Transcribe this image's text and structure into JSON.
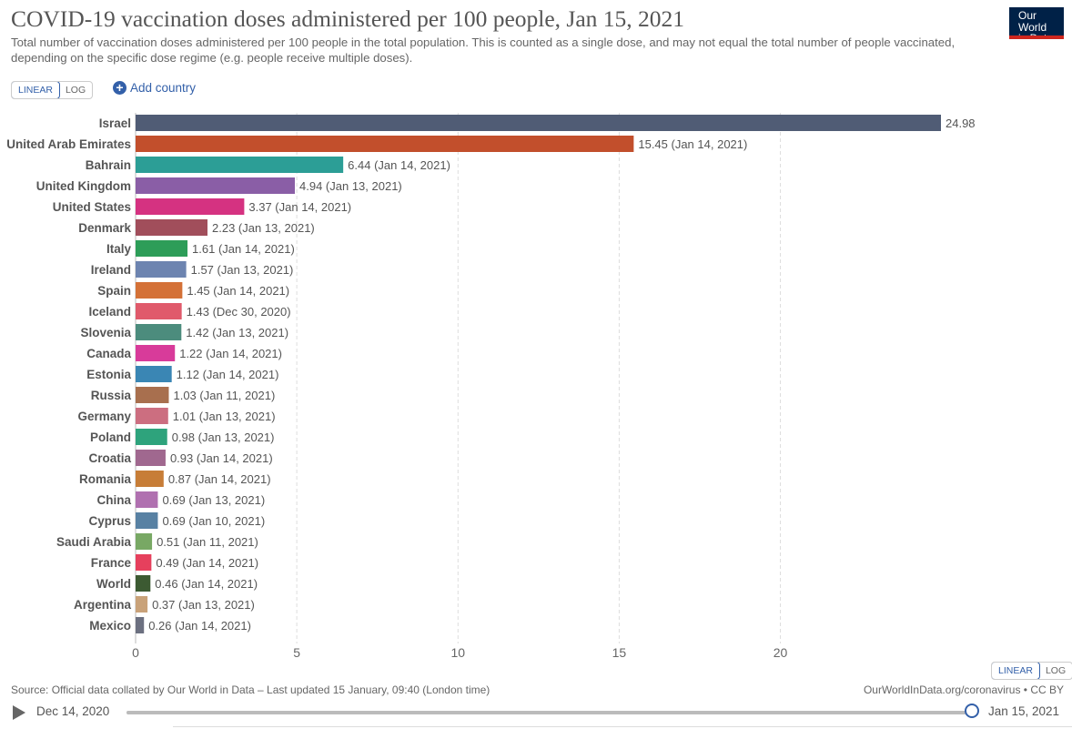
{
  "header": {
    "title": "COVID-19 vaccination doses administered per 100 people, Jan 15, 2021",
    "subtitle": "Total number of vaccination doses administered per 100 people in the total population. This is counted as a single dose, and may not equal the total number of people vaccinated, depending on the specific dose regime (e.g. people receive multiple doses).",
    "logo_line1": "Our World",
    "logo_line2": "in Data"
  },
  "controls": {
    "linear_label": "LINEAR",
    "log_label": "LOG",
    "add_country_label": "Add country"
  },
  "footer": {
    "source": "Source: Official data collated by Our World in Data – Last updated 15 January, 09:40 (London time)",
    "license": "OurWorldInData.org/coronavirus • CC BY"
  },
  "timeline": {
    "start_label": "Dec 14, 2020",
    "end_label": "Jan 15, 2021",
    "progress": 1.0
  },
  "chart_data": {
    "type": "bar",
    "orientation": "horizontal",
    "xlim": [
      0,
      25
    ],
    "xticks": [
      0,
      5,
      10,
      15,
      20
    ],
    "grid": "vertical dashed",
    "bars": [
      {
        "label": "Israel",
        "value": 24.98,
        "value_label": "24.98",
        "color": "#505c75"
      },
      {
        "label": "United Arab Emirates",
        "value": 15.45,
        "value_label": "15.45 (Jan 14, 2021)",
        "color": "#c24f2c"
      },
      {
        "label": "Bahrain",
        "value": 6.44,
        "value_label": "6.44 (Jan 14, 2021)",
        "color": "#2c9e96"
      },
      {
        "label": "United Kingdom",
        "value": 4.94,
        "value_label": "4.94 (Jan 13, 2021)",
        "color": "#8a5ea6"
      },
      {
        "label": "United States",
        "value": 3.37,
        "value_label": "3.37 (Jan 14, 2021)",
        "color": "#d53281"
      },
      {
        "label": "Denmark",
        "value": 2.23,
        "value_label": "2.23 (Jan 13, 2021)",
        "color": "#a14e5b"
      },
      {
        "label": "Italy",
        "value": 1.61,
        "value_label": "1.61 (Jan 14, 2021)",
        "color": "#2d9d58"
      },
      {
        "label": "Ireland",
        "value": 1.57,
        "value_label": "1.57 (Jan 13, 2021)",
        "color": "#6d84b0"
      },
      {
        "label": "Spain",
        "value": 1.45,
        "value_label": "1.45 (Jan 14, 2021)",
        "color": "#d47137"
      },
      {
        "label": "Iceland",
        "value": 1.43,
        "value_label": "1.43 (Dec 30, 2020)",
        "color": "#e05a6b"
      },
      {
        "label": "Slovenia",
        "value": 1.42,
        "value_label": "1.42 (Jan 13, 2021)",
        "color": "#4c8c7d"
      },
      {
        "label": "Canada",
        "value": 1.22,
        "value_label": "1.22 (Jan 14, 2021)",
        "color": "#d83b9a"
      },
      {
        "label": "Estonia",
        "value": 1.12,
        "value_label": "1.12 (Jan 14, 2021)",
        "color": "#3a86b4"
      },
      {
        "label": "Russia",
        "value": 1.03,
        "value_label": "1.03 (Jan 11, 2021)",
        "color": "#a86f4e"
      },
      {
        "label": "Germany",
        "value": 1.01,
        "value_label": "1.01 (Jan 13, 2021)",
        "color": "#cc6e80"
      },
      {
        "label": "Poland",
        "value": 0.98,
        "value_label": "0.98 (Jan 13, 2021)",
        "color": "#2ea37c"
      },
      {
        "label": "Croatia",
        "value": 0.93,
        "value_label": "0.93 (Jan 14, 2021)",
        "color": "#a0688f"
      },
      {
        "label": "Romania",
        "value": 0.87,
        "value_label": "0.87 (Jan 14, 2021)",
        "color": "#c77d37"
      },
      {
        "label": "China",
        "value": 0.69,
        "value_label": "0.69 (Jan 13, 2021)",
        "color": "#b070b0"
      },
      {
        "label": "Cyprus",
        "value": 0.69,
        "value_label": "0.69 (Jan 10, 2021)",
        "color": "#5881a3"
      },
      {
        "label": "Saudi Arabia",
        "value": 0.51,
        "value_label": "0.51 (Jan 11, 2021)",
        "color": "#78a864"
      },
      {
        "label": "France",
        "value": 0.49,
        "value_label": "0.49 (Jan 14, 2021)",
        "color": "#e6405d"
      },
      {
        "label": "World",
        "value": 0.46,
        "value_label": "0.46 (Jan 14, 2021)",
        "color": "#3c5a32"
      },
      {
        "label": "Argentina",
        "value": 0.37,
        "value_label": "0.37 (Jan 13, 2021)",
        "color": "#c9a279"
      },
      {
        "label": "Mexico",
        "value": 0.26,
        "value_label": "0.26 (Jan 14, 2021)",
        "color": "#6c7080"
      }
    ]
  }
}
